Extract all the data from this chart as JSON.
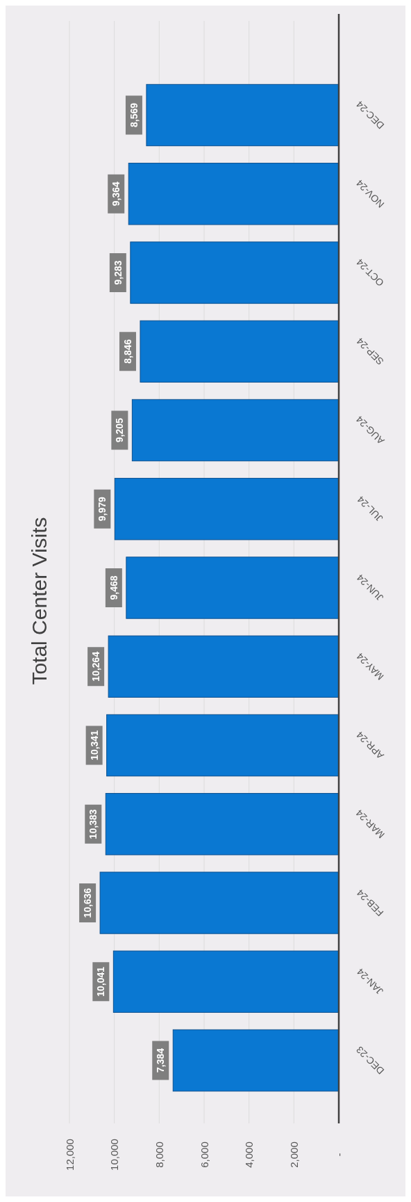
{
  "chart_data": {
    "type": "bar",
    "orientation": "horizontal",
    "title": "Total Center Visits",
    "categories": [
      "DEC-24",
      "NOV-24",
      "OCT-24",
      "SEP-24",
      "AUG-24",
      "JUL-24",
      "JUN-24",
      "MAY-24",
      "APR-24",
      "MAR-24",
      "FEB-24",
      "JAN-24",
      "DEC-23"
    ],
    "values": [
      8569,
      9364,
      9283,
      8846,
      9205,
      9979,
      9468,
      10264,
      10341,
      10383,
      10636,
      10041,
      7384
    ],
    "color": "#0a78d2",
    "xlim": [
      12000,
      0
    ],
    "xticks": [
      {
        "value": 12000,
        "label": "12,000"
      },
      {
        "value": 10000,
        "label": "10,000"
      },
      {
        "value": 8000,
        "label": "8,000"
      },
      {
        "value": 6000,
        "label": "6,000"
      },
      {
        "value": 4000,
        "label": "4,000"
      },
      {
        "value": 2000,
        "label": "2,000"
      },
      {
        "value": 0,
        "label": "-"
      }
    ],
    "value_labels": [
      "8,569",
      "9,364",
      "9,283",
      "8,846",
      "9,205",
      "9,979",
      "9,468",
      "10,264",
      "10,341",
      "10,383",
      "10,636",
      "10,041",
      "7,384"
    ],
    "grid": "x"
  }
}
